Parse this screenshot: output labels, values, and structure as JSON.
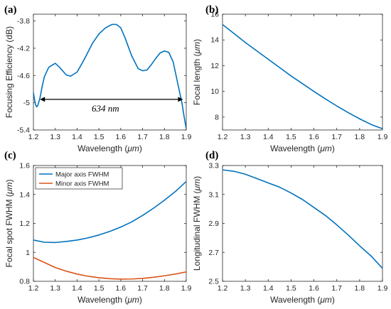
{
  "colors": {
    "blue": "#0072BD",
    "orange": "#D95319",
    "axis": "#262626"
  },
  "chart_data": [
    {
      "type": "line",
      "panel_label": "(a)",
      "xlabel_prefix": "Wavelength (",
      "xlabel_unit": "μm",
      "xlabel_suffix": ")",
      "ylabel": "Focusing Efficiency (dB)",
      "xlim": [
        1.2,
        1.9
      ],
      "ylim": [
        -5.4,
        -3.7
      ],
      "xticks": [
        "1.2",
        "1.3",
        "1.4",
        "1.5",
        "1.6",
        "1.7",
        "1.8",
        "1.9"
      ],
      "yticks": [
        {
          "v": -3.8,
          "label": "-3.8"
        },
        {
          "v": -4.2,
          "label": "-4.2"
        },
        {
          "v": -4.6,
          "label": "-4.6"
        },
        {
          "v": -5.0,
          "label": "-5"
        },
        {
          "v": -5.4,
          "label": "-5.4"
        }
      ],
      "annotation": {
        "text": "634 nm",
        "x1": 1.23,
        "x2": 1.885,
        "y": -4.95,
        "text_x": 1.53,
        "text_y": -5.13
      },
      "series": [
        {
          "color": "blue",
          "x": [
            1.2,
            1.205,
            1.21,
            1.215,
            1.22,
            1.23,
            1.24,
            1.25,
            1.27,
            1.3,
            1.32,
            1.35,
            1.37,
            1.4,
            1.43,
            1.47,
            1.5,
            1.53,
            1.56,
            1.58,
            1.6,
            1.62,
            1.65,
            1.68,
            1.7,
            1.72,
            1.74,
            1.76,
            1.78,
            1.8,
            1.82,
            1.84,
            1.85,
            1.86,
            1.87,
            1.88,
            1.89,
            1.9
          ],
          "y": [
            -4.85,
            -4.95,
            -5.03,
            -5.06,
            -5.04,
            -4.93,
            -4.76,
            -4.62,
            -4.48,
            -4.42,
            -4.48,
            -4.59,
            -4.61,
            -4.55,
            -4.38,
            -4.13,
            -3.99,
            -3.9,
            -3.85,
            -3.85,
            -3.9,
            -4.05,
            -4.31,
            -4.5,
            -4.53,
            -4.52,
            -4.44,
            -4.35,
            -4.27,
            -4.24,
            -4.26,
            -4.4,
            -4.55,
            -4.7,
            -4.85,
            -5.0,
            -5.2,
            -5.38
          ]
        }
      ]
    },
    {
      "type": "line",
      "panel_label": "(b)",
      "xlabel_prefix": "Wavelength (",
      "xlabel_unit": "μm",
      "xlabel_suffix": ")",
      "ylabel_prefix": "Focal length (",
      "ylabel_unit": "μm",
      "ylabel_suffix": ")",
      "xlim": [
        1.2,
        1.9
      ],
      "ylim": [
        7,
        16
      ],
      "xticks": [
        "1.2",
        "1.3",
        "1.4",
        "1.5",
        "1.6",
        "1.7",
        "1.8",
        "1.9"
      ],
      "yticks": [
        {
          "v": 8,
          "label": "8"
        },
        {
          "v": 10,
          "label": "10"
        },
        {
          "v": 12,
          "label": "12"
        },
        {
          "v": 14,
          "label": "14"
        },
        {
          "v": 16,
          "label": "16"
        }
      ],
      "series": [
        {
          "color": "blue",
          "x": [
            1.2,
            1.25,
            1.3,
            1.35,
            1.4,
            1.45,
            1.5,
            1.55,
            1.6,
            1.65,
            1.7,
            1.75,
            1.8,
            1.85,
            1.9
          ],
          "y": [
            15.2,
            14.5,
            13.8,
            13.15,
            12.5,
            11.85,
            11.2,
            10.6,
            10.0,
            9.42,
            8.87,
            8.35,
            7.87,
            7.43,
            7.1
          ]
        }
      ]
    },
    {
      "type": "line",
      "panel_label": "(c)",
      "xlabel_prefix": "Wavelength (",
      "xlabel_unit": "μm",
      "xlabel_suffix": ")",
      "ylabel_prefix": "Focal spot FWHM (",
      "ylabel_unit": "μm",
      "ylabel_suffix": ")",
      "xlim": [
        1.2,
        1.9
      ],
      "ylim": [
        0.8,
        1.6
      ],
      "xticks": [
        "1.2",
        "1.3",
        "1.4",
        "1.5",
        "1.6",
        "1.7",
        "1.8",
        "1.9"
      ],
      "yticks": [
        {
          "v": 0.8,
          "label": "0.8"
        },
        {
          "v": 1.0,
          "label": "1"
        },
        {
          "v": 1.2,
          "label": "1.2"
        },
        {
          "v": 1.4,
          "label": "1.4"
        },
        {
          "v": 1.6,
          "label": "1.6"
        }
      ],
      "legend": "top-left",
      "series": [
        {
          "name": "Major axis FWHM",
          "color": "blue",
          "x": [
            1.2,
            1.25,
            1.3,
            1.35,
            1.4,
            1.45,
            1.5,
            1.55,
            1.6,
            1.65,
            1.7,
            1.75,
            1.8,
            1.85,
            1.9
          ],
          "y": [
            1.085,
            1.07,
            1.068,
            1.075,
            1.085,
            1.1,
            1.12,
            1.145,
            1.175,
            1.21,
            1.255,
            1.305,
            1.36,
            1.42,
            1.49
          ]
        },
        {
          "name": "Minor axis FWHM",
          "color": "orange",
          "x": [
            1.2,
            1.25,
            1.3,
            1.35,
            1.4,
            1.45,
            1.5,
            1.55,
            1.6,
            1.65,
            1.7,
            1.75,
            1.8,
            1.85,
            1.9
          ],
          "y": [
            0.965,
            0.93,
            0.895,
            0.87,
            0.85,
            0.835,
            0.825,
            0.818,
            0.815,
            0.816,
            0.82,
            0.828,
            0.838,
            0.85,
            0.865
          ]
        }
      ]
    },
    {
      "type": "line",
      "panel_label": "(d)",
      "xlabel_prefix": "Wavelength (",
      "xlabel_unit": "μm",
      "xlabel_suffix": ")",
      "ylabel_prefix": "Longitudinal FWHM (",
      "ylabel_unit": "μm",
      "ylabel_suffix": ")",
      "xlim": [
        1.2,
        1.9
      ],
      "ylim": [
        2.5,
        3.3
      ],
      "xticks": [
        "1.2",
        "1.3",
        "1.4",
        "1.5",
        "1.6",
        "1.7",
        "1.8",
        "1.9"
      ],
      "yticks": [
        {
          "v": 2.5,
          "label": "2.5"
        },
        {
          "v": 2.7,
          "label": "2.7"
        },
        {
          "v": 2.9,
          "label": "2.9"
        },
        {
          "v": 3.1,
          "label": "3.1"
        },
        {
          "v": 3.3,
          "label": "3.3"
        }
      ],
      "series": [
        {
          "color": "blue",
          "x": [
            1.2,
            1.25,
            1.3,
            1.35,
            1.4,
            1.45,
            1.5,
            1.55,
            1.6,
            1.65,
            1.7,
            1.75,
            1.8,
            1.85,
            1.9
          ],
          "y": [
            3.27,
            3.26,
            3.24,
            3.21,
            3.18,
            3.15,
            3.11,
            3.065,
            3.01,
            2.955,
            2.89,
            2.82,
            2.745,
            2.675,
            2.59
          ]
        }
      ]
    }
  ]
}
